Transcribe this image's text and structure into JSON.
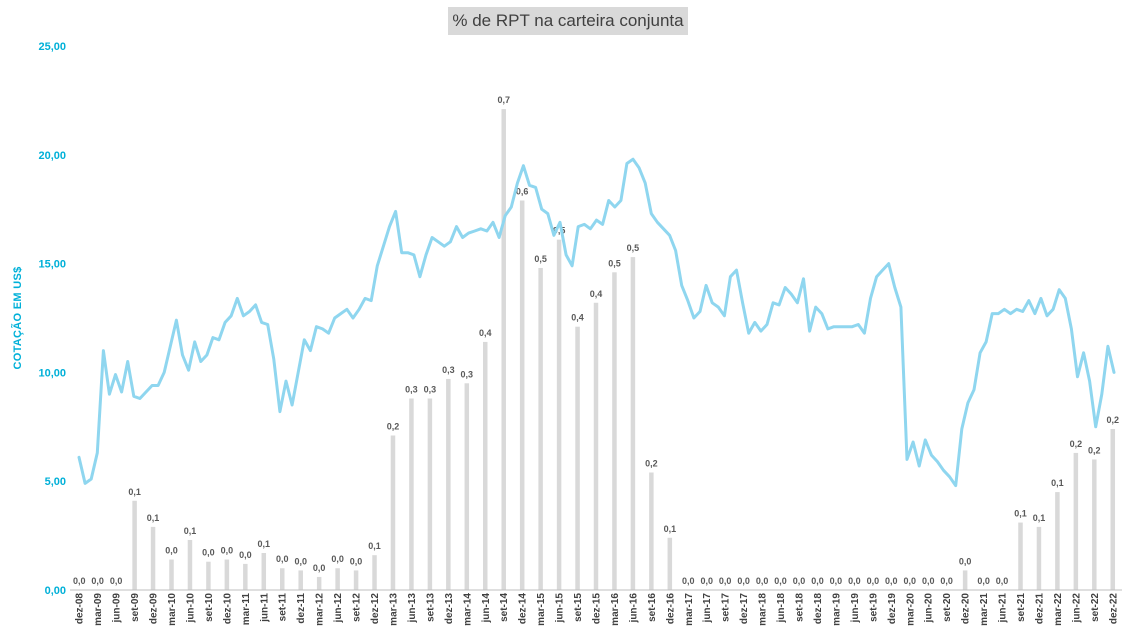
{
  "chart_data": {
    "type": "bar+line",
    "title": "% de RPT na carteira conjunta",
    "ylabel": "COTAÇÃO EM US$",
    "ylim": [
      0,
      25
    ],
    "yticks": [
      "0,00",
      "5,00",
      "10,00",
      "15,00",
      "20,00",
      "25,00"
    ],
    "xticks": [
      "dez-08",
      "mar-09",
      "jun-09",
      "set-09",
      "dez-09",
      "mar-10",
      "jun-10",
      "set-10",
      "dez-10",
      "mar-11",
      "jun-11",
      "set-11",
      "dez-11",
      "mar-12",
      "jun-12",
      "set-12",
      "dez-12",
      "mar-13",
      "jun-13",
      "set-13",
      "dez-13",
      "mar-14",
      "jun-14",
      "set-14",
      "dez-14",
      "mar-15",
      "jun-15",
      "set-15",
      "dez-15",
      "mar-16",
      "jun-16",
      "set-16",
      "dez-16",
      "mar-17",
      "jun-17",
      "set-17",
      "dez-17",
      "mar-18",
      "jun-18",
      "set-18",
      "dez-18",
      "mar-19",
      "jun-19",
      "set-19",
      "dez-19",
      "mar-20",
      "jun-20",
      "set-20",
      "dez-20",
      "mar-21",
      "jun-21",
      "set-21",
      "dez-21",
      "mar-22",
      "jun-22",
      "set-22",
      "dez-22"
    ],
    "bar_series": {
      "values": [
        0,
        0,
        0,
        4.1,
        2.9,
        1.4,
        2.3,
        1.3,
        1.4,
        1.2,
        1.7,
        1.0,
        0.9,
        0.6,
        1.0,
        0.9,
        1.6,
        7.1,
        8.8,
        8.8,
        9.7,
        9.5,
        11.4,
        22.1,
        17.9,
        14.8,
        16.1,
        12.1,
        13.2,
        14.6,
        15.3,
        5.4,
        2.4,
        0,
        0,
        0,
        0,
        0,
        0,
        0,
        0,
        0,
        0,
        0,
        0,
        0,
        0,
        0,
        0.9,
        0,
        0,
        3.1,
        2.9,
        4.5,
        6.3,
        6.0,
        7.4
      ],
      "labels": [
        "0,0",
        "0,0",
        "0,0",
        "0,1",
        "0,1",
        "0,0",
        "0,1",
        "0,0",
        "0,0",
        "0,0",
        "0,1",
        "0,0",
        "0,0",
        "0,0",
        "0,0",
        "0,0",
        "0,1",
        "0,2",
        "0,3",
        "0,3",
        "0,3",
        "0,3",
        "0,4",
        "0,7",
        "0,6",
        "0,5",
        "0,5",
        "0,4",
        "0,4",
        "0,5",
        "0,5",
        "0,2",
        "0,1",
        "0,0",
        "0,0",
        "0,0",
        "0,0",
        "0,0",
        "0,0",
        "0,0",
        "0,0",
        "0,0",
        "0,0",
        "0,0",
        "0,0",
        "0,0",
        "0,0",
        "0,0",
        "0,0",
        "0,0",
        "0,0",
        "0,1",
        "0,1",
        "0,1",
        "0,2",
        "0,2",
        "0,2"
      ],
      "color": "#d9d9d9"
    },
    "line_series": {
      "values": [
        6.1,
        4.9,
        5.1,
        6.3,
        11.0,
        9.0,
        9.9,
        9.1,
        10.5,
        8.9,
        8.8,
        9.1,
        9.4,
        9.4,
        10.0,
        11.2,
        12.4,
        10.8,
        10.1,
        11.4,
        10.5,
        10.8,
        11.6,
        11.5,
        12.3,
        12.6,
        13.4,
        12.6,
        12.8,
        13.1,
        12.3,
        12.2,
        10.6,
        8.2,
        9.6,
        8.5,
        10.0,
        11.5,
        11.0,
        12.1,
        12.0,
        11.8,
        12.5,
        12.7,
        12.9,
        12.5,
        12.9,
        13.4,
        13.3,
        14.9,
        15.8,
        16.7,
        17.4,
        15.5,
        15.5,
        15.4,
        14.4,
        15.4,
        16.2,
        16.0,
        15.8,
        16.0,
        16.7,
        16.2,
        16.4,
        16.5,
        16.6,
        16.5,
        16.9,
        16.2,
        17.2,
        17.6,
        18.7,
        19.5,
        18.6,
        18.5,
        17.5,
        17.3,
        16.3,
        16.9,
        15.4,
        14.9,
        16.7,
        16.8,
        16.6,
        17.0,
        16.8,
        17.9,
        17.6,
        17.9,
        19.6,
        19.8,
        19.4,
        18.7,
        17.3,
        16.9,
        16.6,
        16.3,
        15.6,
        14.0,
        13.3,
        12.5,
        12.8,
        14.0,
        13.2,
        13.0,
        12.6,
        14.4,
        14.7,
        13.2,
        11.8,
        12.3,
        11.9,
        12.2,
        13.2,
        13.1,
        13.9,
        13.6,
        13.2,
        14.3,
        11.9,
        13.0,
        12.7,
        12.0,
        12.1,
        12.1,
        12.1,
        12.1,
        12.2,
        11.8,
        13.4,
        14.4,
        14.7,
        15.0,
        13.9,
        13.0,
        6.0,
        6.8,
        5.7,
        6.9,
        6.2,
        5.9,
        5.5,
        5.2,
        4.8,
        7.4,
        8.6,
        9.2,
        10.9,
        11.4,
        12.7,
        12.7,
        12.9,
        12.7,
        12.9,
        12.8,
        13.3,
        12.7,
        13.4,
        12.6,
        12.9,
        13.8,
        13.4,
        12.0,
        9.8,
        10.9,
        9.6,
        7.5,
        9.0,
        11.2,
        10.0
      ],
      "color": "#8fd6ef"
    },
    "grid": false,
    "legend": "none"
  }
}
